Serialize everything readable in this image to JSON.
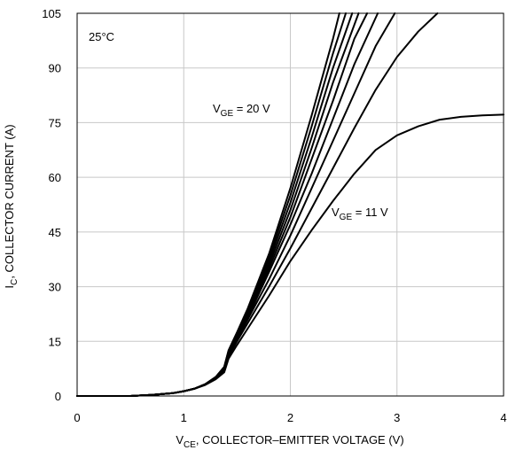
{
  "chart_data": {
    "type": "line",
    "title": "",
    "annotation_temp": "25°C",
    "xlabel": {
      "main": "V",
      "sub": "CE",
      "rest": ", COLLECTOR–EMITTER VOLTAGE (V)"
    },
    "ylabel": {
      "main": "I",
      "sub": "C",
      "rest": ", COLLECTOR CURRENT (A)"
    },
    "xlim": [
      0,
      4
    ],
    "ylim": [
      0,
      105
    ],
    "xticks": [
      0,
      1,
      2,
      3,
      4
    ],
    "yticks": [
      0,
      15,
      30,
      45,
      60,
      75,
      90,
      105
    ],
    "grid": true,
    "labels": {
      "top": {
        "main": "V",
        "sub": "GE",
        "rest": " = 20 V"
      },
      "bottom": {
        "main": "V",
        "sub": "GE",
        "rest": " = 11 V"
      }
    },
    "series": [
      {
        "x": [
          0,
          0.5,
          0.7,
          0.9,
          1.0,
          1.1,
          1.2,
          1.3,
          1.38,
          1.42,
          1.5,
          1.6,
          1.8,
          2.0,
          2.2,
          2.4,
          2.46
        ],
        "y": [
          0,
          0,
          0.3,
          0.8,
          1.3,
          2.0,
          3.2,
          5.2,
          8.0,
          12.5,
          17.5,
          24,
          39,
          57,
          77,
          98,
          105
        ]
      },
      {
        "x": [
          0,
          0.5,
          0.7,
          0.9,
          1.0,
          1.1,
          1.2,
          1.3,
          1.38,
          1.42,
          1.5,
          1.6,
          1.8,
          2.0,
          2.2,
          2.4,
          2.52
        ],
        "y": [
          0,
          0,
          0.3,
          0.8,
          1.3,
          2.0,
          3.2,
          5.2,
          8.0,
          12.3,
          17.2,
          23.5,
          38,
          55,
          74,
          94,
          105
        ]
      },
      {
        "x": [
          0,
          0.5,
          0.7,
          0.9,
          1.0,
          1.1,
          1.2,
          1.3,
          1.38,
          1.42,
          1.5,
          1.6,
          1.8,
          2.0,
          2.2,
          2.4,
          2.58
        ],
        "y": [
          0,
          0,
          0.3,
          0.8,
          1.3,
          2.0,
          3.2,
          5.2,
          7.8,
          12.1,
          16.9,
          23,
          37,
          53,
          71,
          90,
          105
        ]
      },
      {
        "x": [
          0,
          0.5,
          0.7,
          0.9,
          1.0,
          1.1,
          1.2,
          1.3,
          1.38,
          1.42,
          1.5,
          1.6,
          1.8,
          2.0,
          2.2,
          2.4,
          2.64
        ],
        "y": [
          0,
          0,
          0.3,
          0.8,
          1.3,
          2.0,
          3.2,
          5.1,
          7.6,
          11.9,
          16.6,
          22.5,
          36,
          51,
          68,
          86,
          105
        ]
      },
      {
        "x": [
          0,
          0.5,
          0.7,
          0.9,
          1.0,
          1.1,
          1.2,
          1.3,
          1.38,
          1.42,
          1.5,
          1.6,
          1.8,
          2.0,
          2.2,
          2.4,
          2.6,
          2.72
        ],
        "y": [
          0,
          0,
          0.3,
          0.8,
          1.3,
          2.0,
          3.2,
          5.0,
          7.4,
          11.7,
          16.3,
          22,
          35,
          49,
          65,
          81,
          98,
          105
        ]
      },
      {
        "x": [
          0,
          0.5,
          0.7,
          0.9,
          1.0,
          1.1,
          1.2,
          1.3,
          1.38,
          1.42,
          1.5,
          1.6,
          1.8,
          2.0,
          2.2,
          2.4,
          2.6,
          2.82
        ],
        "y": [
          0,
          0,
          0.3,
          0.8,
          1.3,
          2.0,
          3.2,
          5.0,
          7.2,
          11.5,
          16.0,
          21.5,
          34,
          47,
          61,
          76,
          91,
          105
        ]
      },
      {
        "x": [
          0,
          0.5,
          0.7,
          0.9,
          1.0,
          1.1,
          1.2,
          1.3,
          1.38,
          1.42,
          1.5,
          1.6,
          1.8,
          2.0,
          2.2,
          2.4,
          2.6,
          2.8,
          2.98
        ],
        "y": [
          0,
          0,
          0.3,
          0.8,
          1.3,
          2.0,
          3.1,
          4.9,
          7.0,
          11.2,
          15.6,
          21,
          32,
          44,
          57,
          70,
          83,
          96,
          105
        ]
      },
      {
        "x": [
          0,
          0.5,
          0.7,
          0.9,
          1.0,
          1.1,
          1.2,
          1.3,
          1.38,
          1.42,
          1.5,
          1.6,
          1.8,
          2.0,
          2.2,
          2.4,
          2.6,
          2.8,
          3.0,
          3.2,
          3.38
        ],
        "y": [
          0,
          0,
          0.3,
          0.8,
          1.3,
          2.0,
          3.1,
          4.8,
          6.8,
          10.8,
          15.0,
          20,
          30,
          40.5,
          51.5,
          62.5,
          73.5,
          84,
          93,
          100,
          105
        ]
      },
      {
        "x": [
          0,
          0.5,
          0.7,
          0.9,
          1.0,
          1.1,
          1.2,
          1.3,
          1.38,
          1.42,
          1.5,
          1.6,
          1.8,
          2.0,
          2.2,
          2.4,
          2.6,
          2.8,
          3.0,
          3.2,
          3.4,
          3.6,
          3.8,
          4.0
        ],
        "y": [
          0,
          0,
          0.3,
          0.8,
          1.3,
          2.0,
          3.0,
          4.6,
          6.5,
          10.2,
          14.0,
          18.5,
          27.5,
          37,
          45.5,
          53.5,
          61,
          67.5,
          71.5,
          74,
          75.8,
          76.6,
          77,
          77.2
        ]
      }
    ]
  }
}
